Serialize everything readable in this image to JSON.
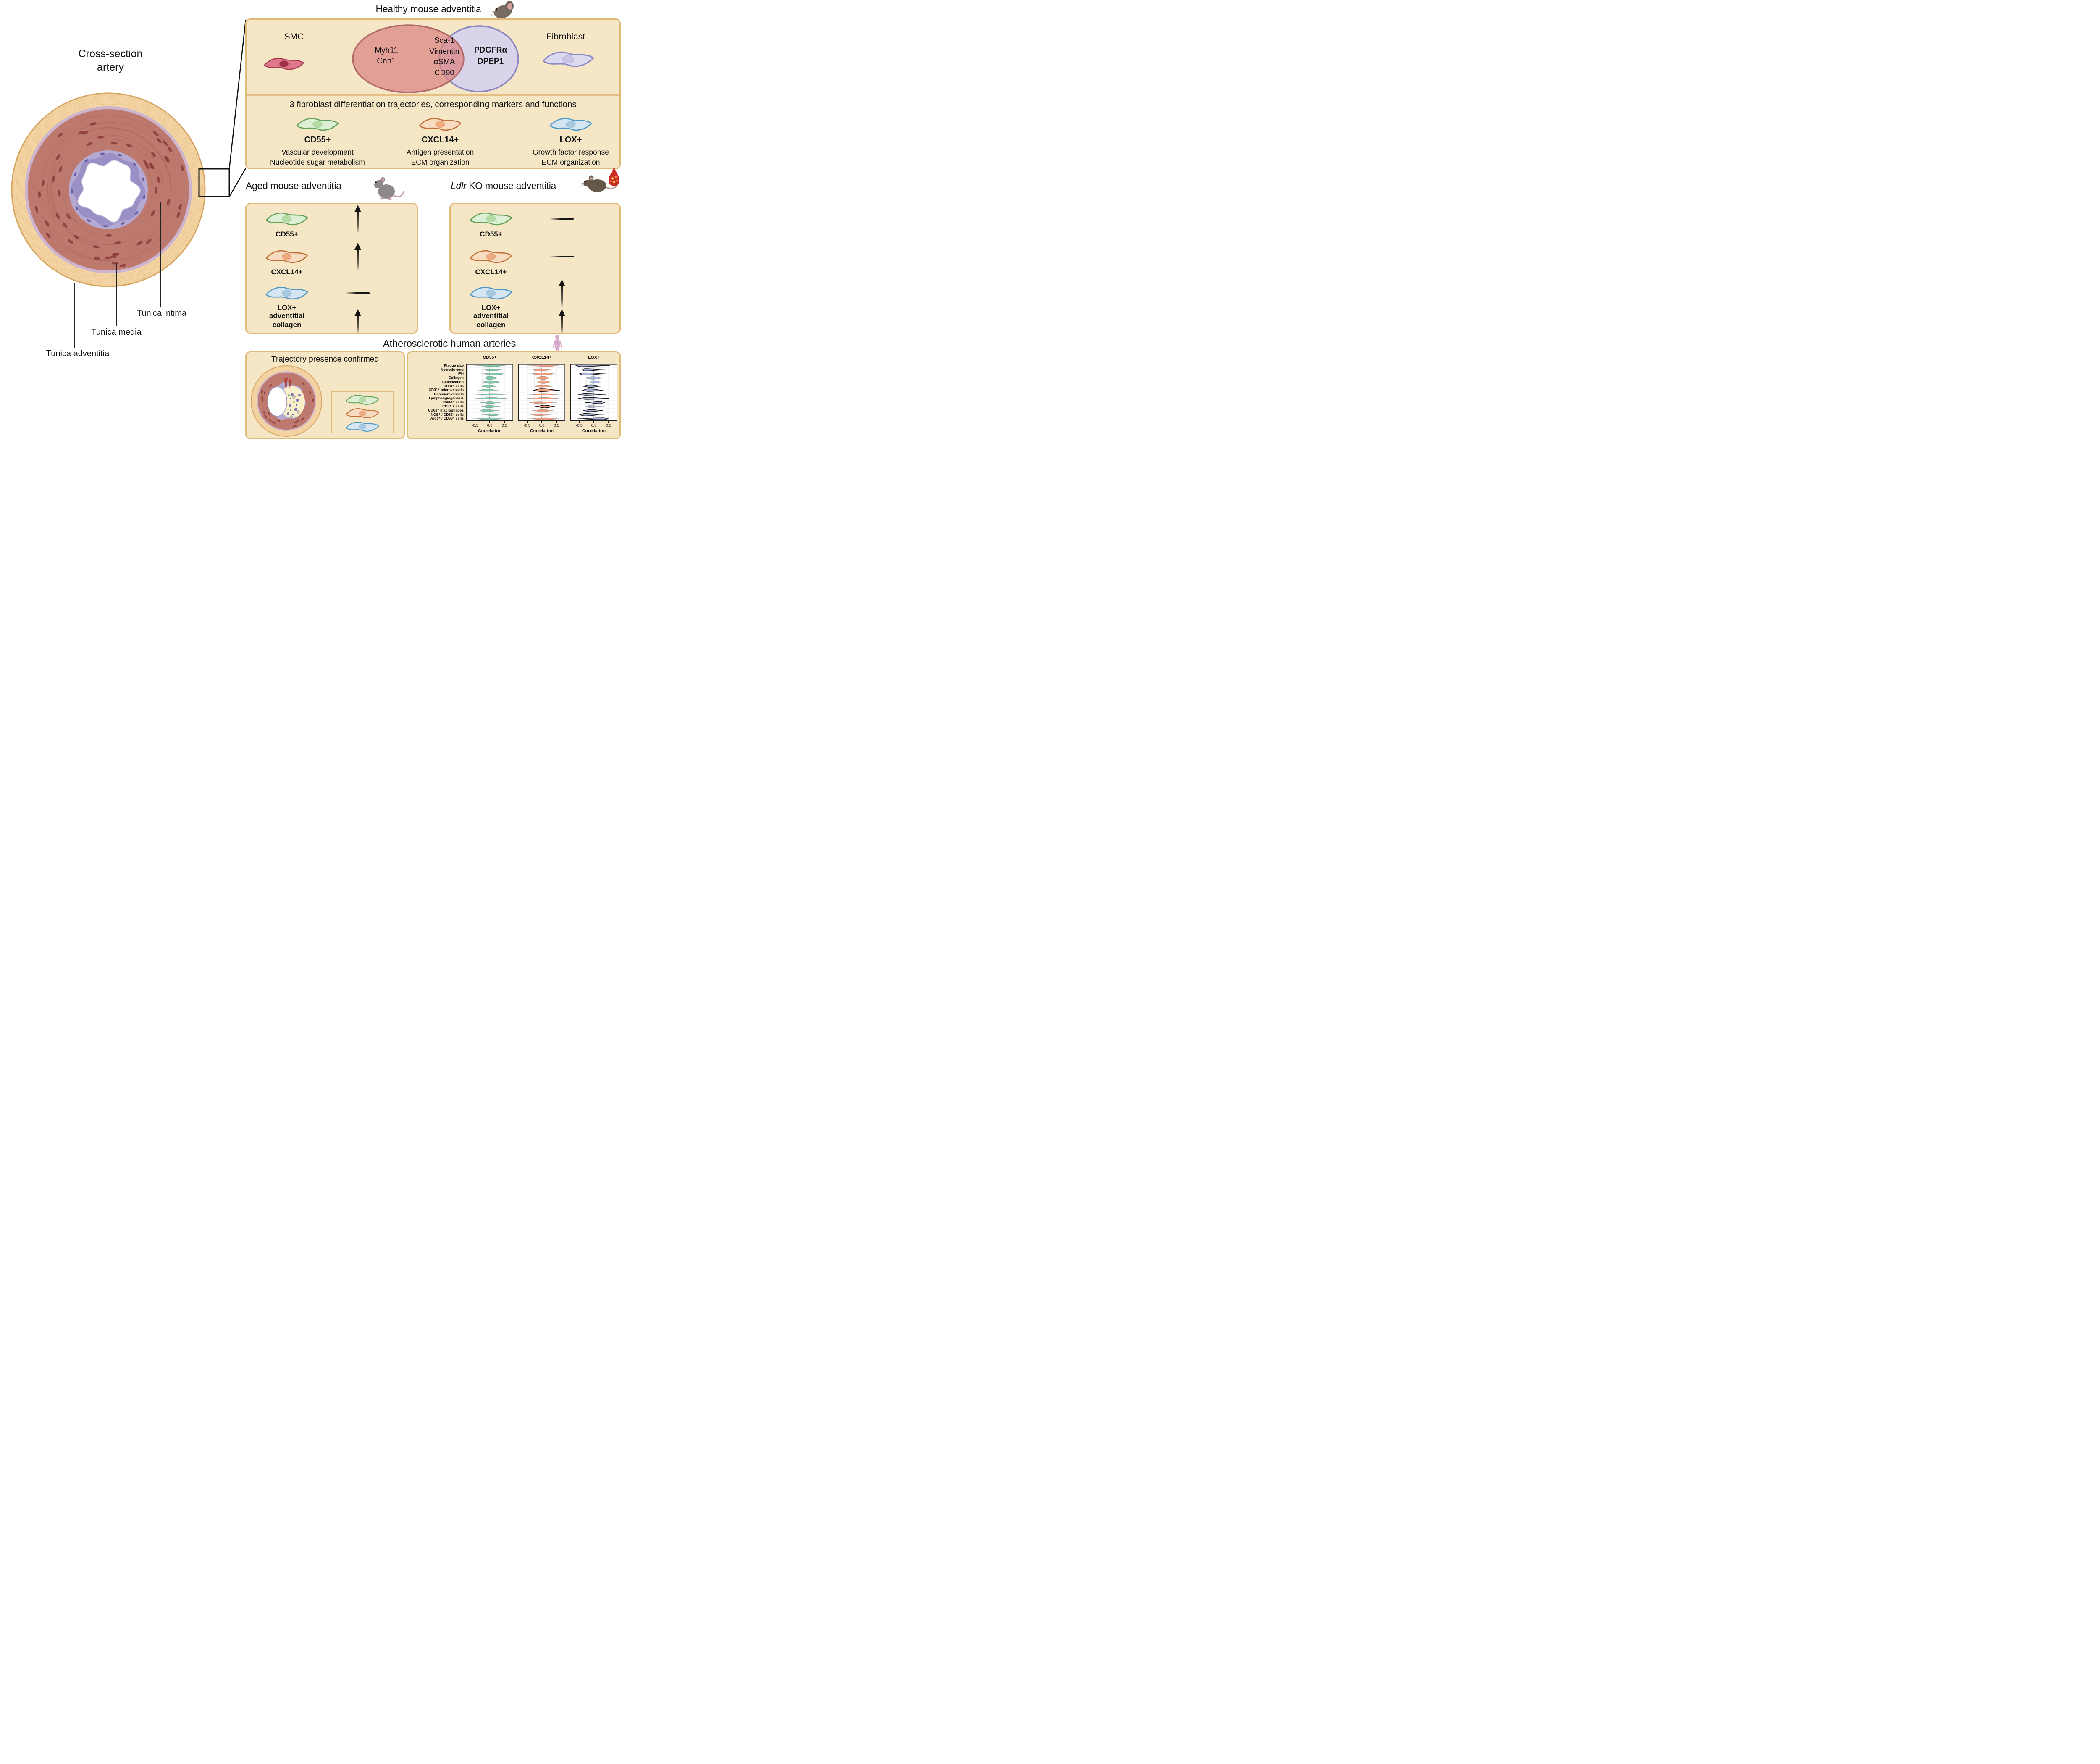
{
  "colors": {
    "panel_bg": "#f5e7c6",
    "panel_border": "#e0ba79",
    "divider": "#e4c183",
    "arrow": "#151515",
    "green_cell": {
      "fill": "#ddefd5",
      "stroke": "#64a159",
      "nucleus": "#b2dca4"
    },
    "orange_cell": {
      "fill": "#f7dcc2",
      "stroke": "#c2703a",
      "nucleus": "#eeaa80"
    },
    "blue_cell": {
      "fill": "#d5e5f2",
      "stroke": "#4f97c6",
      "nucleus": "#a8c8e0"
    },
    "smc_cell": {
      "fill": "#e0788c",
      "stroke": "#a63a52",
      "nucleus": "#9c3049"
    },
    "fibro_cell": {
      "fill": "#dcdaee",
      "stroke": "#8f8bc7",
      "nucleus": "#c9c3e4"
    }
  },
  "cross_section": {
    "title_line1": "Cross-section",
    "title_line2": "artery",
    "label_intima": "Tunica intima",
    "label_media": "Tunica media",
    "label_adventitia": "Tunica adventitia"
  },
  "healthy": {
    "title": "Healthy mouse adventitia",
    "smc_label": "SMC",
    "fibroblast_label": "Fibroblast",
    "venn_left": [
      "Myh11",
      "Cnn1"
    ],
    "venn_overlap": [
      "Sca-1",
      "Vimentin",
      "αSMA",
      "CD90"
    ],
    "venn_right": [
      "PDGFRα",
      "DPEP1"
    ],
    "traj_header": "3 fibroblast differentiation trajectories, corresponding markers and functions",
    "trajectories": [
      {
        "marker": "CD55+",
        "color": "green_cell",
        "functions": [
          "Vascular development",
          "Nucleotide sugar metabolism"
        ]
      },
      {
        "marker": "CXCL14+",
        "color": "orange_cell",
        "functions": [
          "Antigen presentation",
          "ECM organization"
        ]
      },
      {
        "marker": "LOX+",
        "color": "blue_cell",
        "functions": [
          "Growth factor response",
          "ECM organization"
        ]
      }
    ]
  },
  "aged": {
    "title": "Aged mouse adventitia",
    "rows": [
      {
        "label": "CD55+",
        "color": "green_cell",
        "change": "up"
      },
      {
        "label": "CXCL14+",
        "color": "orange_cell",
        "change": "up"
      },
      {
        "label": "LOX+",
        "color": "blue_cell",
        "change": "flat"
      },
      {
        "label_lines": [
          "adventitial",
          "collagen"
        ],
        "change": "up"
      }
    ]
  },
  "ldlr": {
    "title_gene": "Ldlr",
    "title_rest": " KO mouse adventitia",
    "rows": [
      {
        "label": "CD55+",
        "color": "green_cell",
        "change": "flat"
      },
      {
        "label": "CXCL14+",
        "color": "orange_cell",
        "change": "flat"
      },
      {
        "label": "LOX+",
        "color": "blue_cell",
        "change": "up"
      },
      {
        "label_lines": [
          "adventitial",
          "collagen"
        ],
        "change": "up"
      }
    ]
  },
  "human": {
    "title": "Atherosclerotic human arteries",
    "confirmed_title": "Trajectory presence confirmed"
  },
  "chart_data": {
    "type": "violin",
    "orientation": "horizontal",
    "xlabel": "Correlation",
    "x_ticks": [
      "-0.5",
      "0.0",
      "0.5"
    ],
    "x_tick_values": [
      -0.5,
      0.0,
      0.5
    ],
    "x_range": [
      -0.8,
      0.8
    ],
    "grid": true,
    "rows": [
      "Plaque size",
      "Necrotic core",
      "IPH",
      "Collagen",
      "Calcification",
      "CD31⁺ cells",
      "CD31⁺ microvessels",
      "Neomicrovessels",
      "Lymphangiogenesis",
      "αSMA⁺ cells",
      "CD3⁺ T cells",
      "CD68⁺ macrophages",
      "iNOS⁺ / CD68⁺ cells",
      "Arg1⁺ / CD68⁺ cells"
    ],
    "series": [
      {
        "name": "CD55+",
        "color": "#7ecbaa",
        "violins": [
          [
            -0.55,
            0.15,
            0.55,
            0.35,
            0
          ],
          [
            -0.3,
            0.05,
            0.55,
            0.4,
            0
          ],
          [
            -0.35,
            0.2,
            0.55,
            0.45,
            0
          ],
          [
            -0.2,
            -0.03,
            0.35,
            1.0,
            0
          ],
          [
            -0.3,
            0.05,
            0.4,
            0.8,
            0
          ],
          [
            -0.35,
            -0.05,
            0.3,
            0.6,
            0
          ],
          [
            -0.4,
            -0.1,
            0.3,
            0.55,
            0
          ],
          [
            -0.55,
            0.1,
            0.6,
            0.25,
            0
          ],
          [
            -0.5,
            0.05,
            0.6,
            0.3,
            0
          ],
          [
            -0.35,
            0.0,
            0.4,
            0.5,
            0
          ],
          [
            -0.3,
            -0.05,
            0.4,
            0.55,
            0
          ],
          [
            -0.35,
            -0.15,
            0.35,
            0.6,
            0
          ],
          [
            -0.4,
            0.2,
            0.35,
            0.4,
            0
          ],
          [
            -0.6,
            0.0,
            0.55,
            0.3,
            0
          ]
        ]
      },
      {
        "name": "CXCL14+",
        "color": "#f79e7d",
        "violins": [
          [
            -0.5,
            0.2,
            0.6,
            0.3,
            0
          ],
          [
            -0.4,
            -0.1,
            0.48,
            0.45,
            0
          ],
          [
            -0.5,
            0.1,
            0.5,
            0.4,
            0
          ],
          [
            -0.28,
            0.05,
            0.3,
            0.9,
            0
          ],
          [
            -0.17,
            0.05,
            0.32,
            0.85,
            0
          ],
          [
            -0.3,
            -0.02,
            0.5,
            0.5,
            0
          ],
          [
            -0.3,
            -0.02,
            0.62,
            0.7,
            1
          ],
          [
            -0.5,
            0.05,
            0.68,
            0.25,
            0
          ],
          [
            -0.5,
            0.1,
            0.58,
            0.3,
            0
          ],
          [
            -0.43,
            -0.15,
            0.52,
            0.45,
            0
          ],
          [
            -0.23,
            0.1,
            0.45,
            0.6,
            1
          ],
          [
            -0.33,
            0.05,
            0.4,
            0.5,
            0
          ],
          [
            -0.5,
            -0.1,
            0.43,
            0.35,
            0
          ],
          [
            -0.5,
            0.1,
            0.68,
            0.3,
            0
          ]
        ]
      },
      {
        "name": "LOX+",
        "color": "#a9b6d9",
        "violins": [
          [
            -0.62,
            -0.45,
            0.55,
            0.35,
            1
          ],
          [
            -0.42,
            -0.3,
            0.4,
            0.5,
            1
          ],
          [
            -0.5,
            -0.35,
            0.4,
            0.5,
            1
          ],
          [
            -0.35,
            -0.05,
            0.38,
            0.7,
            0
          ],
          [
            -0.15,
            -0.05,
            0.27,
            0.65,
            0
          ],
          [
            -0.4,
            -0.12,
            0.25,
            0.6,
            1
          ],
          [
            -0.4,
            -0.18,
            0.32,
            0.6,
            1
          ],
          [
            -0.55,
            -0.3,
            0.43,
            0.35,
            1
          ],
          [
            -0.53,
            -0.25,
            0.5,
            0.4,
            1
          ],
          [
            -0.3,
            0.22,
            0.38,
            0.55,
            1
          ],
          [
            -0.3,
            -0.15,
            0.37,
            0.45,
            0
          ],
          [
            -0.38,
            -0.1,
            0.3,
            0.4,
            1
          ],
          [
            -0.52,
            -0.32,
            0.33,
            0.55,
            1
          ],
          [
            -0.55,
            0.3,
            0.52,
            0.3,
            1
          ]
        ]
      }
    ]
  }
}
